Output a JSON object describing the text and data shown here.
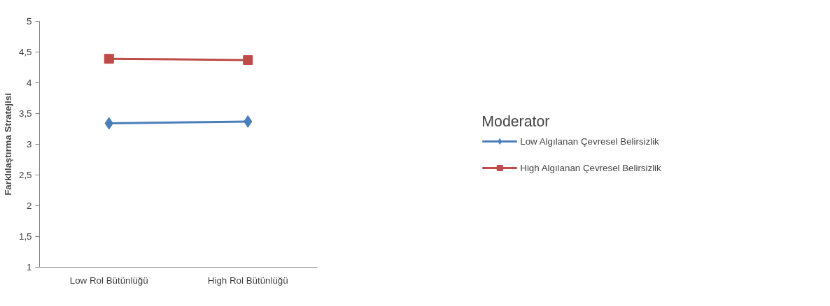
{
  "chart_data": {
    "type": "line",
    "ylabel": "Farklılaştırma Stratejisi",
    "legend_title": "Moderator",
    "categories": [
      "Low Rol Bütünlüğü",
      "High Rol Bütünlüğü"
    ],
    "series": [
      {
        "name": "Low Algılanan Çevresel Belirsizlik",
        "color": "#4a7ebb",
        "marker": "diamond",
        "values": [
          3.34,
          3.37
        ]
      },
      {
        "name": "High Algılanan Çevresel Belirsizlik",
        "color": "#be4b48",
        "marker": "square",
        "values": [
          4.39,
          4.37
        ]
      }
    ],
    "ylim": [
      1,
      5
    ],
    "yticks": [
      1,
      {
        "value": 1.5,
        "label": "1,5"
      },
      2,
      {
        "value": 2.5,
        "label": "2,5"
      },
      3,
      {
        "value": 3.5,
        "label": "3,5"
      },
      4,
      {
        "value": 4.5,
        "label": "4,5"
      },
      5
    ],
    "grid": false,
    "legend": "right",
    "line_style": "solid"
  }
}
